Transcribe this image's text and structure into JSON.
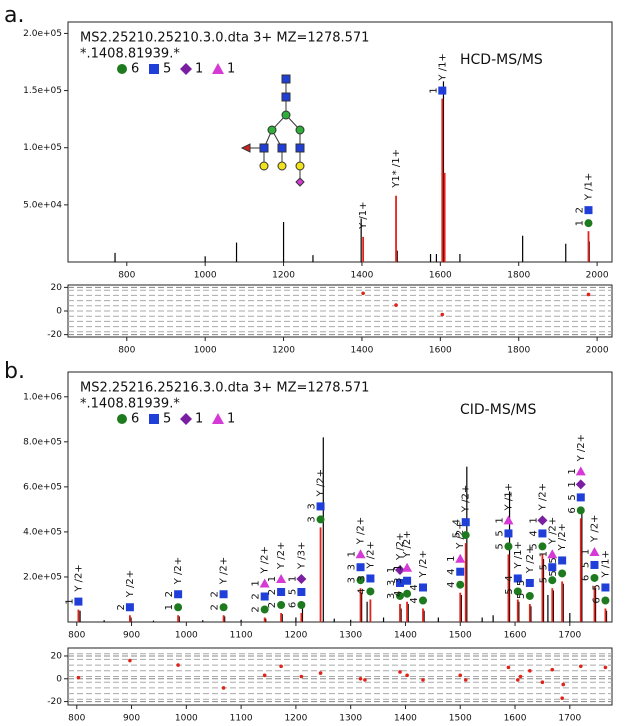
{
  "panel_labels": [
    "a.",
    "b."
  ],
  "chart_data": [
    {
      "type": "bar",
      "title": "MS2.25210.25210.3.0.dta  3+  MZ=1278.571",
      "subtitle": "*.1408.81939.*",
      "method": "HCD-MS/MS",
      "legend": [
        {
          "name": 6,
          "shape": "circle",
          "color": "#1e7a1e"
        },
        {
          "name": 5,
          "shape": "square",
          "color": "#1f3fd8"
        },
        {
          "name": 1,
          "shape": "diamond",
          "color": "#7b1fa2"
        },
        {
          "name": 1,
          "shape": "triangle",
          "color": "#d63ad6"
        }
      ],
      "xlim": [
        650,
        2038
      ],
      "xticks": [
        800,
        1000,
        1200,
        1400,
        1600,
        1800,
        2000
      ],
      "ylim": [
        0,
        210000
      ],
      "yticks": [
        {
          "value": 50000,
          "label": "5.0e+04"
        },
        {
          "value": 100000,
          "label": "1.0e+05"
        },
        {
          "value": 150000,
          "label": "1.5e+05"
        },
        {
          "value": 200000,
          "label": "2.0e+05"
        }
      ],
      "peaks": {
        "color": "#000000",
        "x": [
          770,
          1000,
          1080,
          1200,
          1275,
          1398,
          1490,
          1575,
          1590,
          1608,
          1650,
          1810,
          1920,
          1980
        ],
        "values": [
          8000,
          5000,
          17000,
          35000,
          6000,
          38000,
          10000,
          7000,
          7000,
          158000,
          7000,
          23000,
          16000,
          18000
        ]
      },
      "annotations": {
        "color": "#e0241b",
        "items": [
          {
            "x": 1403,
            "value": 22000,
            "label": "Y /1+",
            "glyphs": []
          },
          {
            "x": 1487,
            "value": 58000,
            "label": "Y1* /1+",
            "glyphs": []
          },
          {
            "x": 1605,
            "value": 143000,
            "label": "Y /1+",
            "glyphs": [
              {
                "shape": "square",
                "count": 1
              }
            ]
          },
          {
            "x": 1611,
            "value": 78000,
            "glyphs": []
          },
          {
            "x": 1978,
            "value": 27000,
            "label": "Y /1+",
            "glyphs": [
              {
                "shape": "circle",
                "count": 1
              },
              {
                "shape": "square",
                "count": 2
              }
            ]
          }
        ]
      }
    },
    {
      "type": "scatter",
      "color": "#e0241b",
      "grid": true,
      "xlim": [
        650,
        2038
      ],
      "xticks": [
        800,
        1000,
        1200,
        1400,
        1600,
        1800,
        2000
      ],
      "ylim": [
        -22,
        22
      ],
      "yticks": [
        -20,
        0,
        20
      ],
      "x": [
        1403,
        1487,
        1605,
        1978
      ],
      "values": [
        15,
        5,
        -3,
        14
      ]
    },
    {
      "type": "bar",
      "title": "MS2.25216.25216.3.0.dta  3+  MZ=1278.571",
      "subtitle": "*.1408.81939.*",
      "method": "CID-MS/MS",
      "legend": [
        {
          "name": 6,
          "shape": "circle",
          "color": "#1e7a1e"
        },
        {
          "name": 5,
          "shape": "square",
          "color": "#1f3fd8"
        },
        {
          "name": 1,
          "shape": "diamond",
          "color": "#7b1fa2"
        },
        {
          "name": 1,
          "shape": "triangle",
          "color": "#d63ad6"
        }
      ],
      "xlim": [
        784,
        1777
      ],
      "xticks": [
        800,
        900,
        1000,
        1100,
        1200,
        1300,
        1400,
        1500,
        1600,
        1700
      ],
      "ylim": [
        0,
        1110000
      ],
      "yticks": [
        {
          "value": 200000,
          "label": "2.0e+05"
        },
        {
          "value": 400000,
          "label": "4.0e+05"
        },
        {
          "value": 600000,
          "label": "6.0e+05"
        },
        {
          "value": 800000,
          "label": "8.0e+05"
        },
        {
          "value": 1000000,
          "label": "1.0e+06"
        }
      ],
      "peaks": {
        "color": "#000000",
        "x": [
          806,
          850,
          899,
          940,
          987,
          1030,
          1070,
          1100,
          1145,
          1175,
          1200,
          1212,
          1250,
          1270,
          1300,
          1320,
          1330,
          1360,
          1392,
          1405,
          1434,
          1460,
          1502,
          1512,
          1540,
          1560,
          1590,
          1607,
          1629,
          1652,
          1660,
          1670,
          1688,
          1700,
          1722,
          1747,
          1767
        ],
        "values": [
          50000,
          8000,
          20000,
          6000,
          25000,
          8000,
          25000,
          10000,
          15000,
          35000,
          20000,
          60000,
          820000,
          15000,
          10000,
          130000,
          90000,
          20000,
          60000,
          80000,
          50000,
          20000,
          120000,
          690000,
          20000,
          30000,
          580000,
          90000,
          70000,
          280000,
          120000,
          140000,
          170000,
          40000,
          510000,
          150000,
          50000
        ]
      },
      "annotations": {
        "color": "#e0241b",
        "items": [
          {
            "x": 803,
            "value": 55000,
            "label": "Y /2+",
            "glyphs": [
              {
                "shape": "square",
                "count": 1
              }
            ]
          },
          {
            "x": 897,
            "value": 30000,
            "label": "Y /2+",
            "glyphs": [
              {
                "shape": "square",
                "count": 2
              }
            ]
          },
          {
            "x": 985,
            "value": 30000,
            "label": "Y /2+",
            "glyphs": [
              {
                "shape": "circle",
                "count": 1
              },
              {
                "shape": "square",
                "count": 2
              }
            ]
          },
          {
            "x": 1068,
            "value": 30000,
            "label": "Y /2+",
            "glyphs": [
              {
                "shape": "circle",
                "count": 2
              },
              {
                "shape": "square",
                "count": 2
              }
            ]
          },
          {
            "x": 1143,
            "value": 20000,
            "label": "Y /2+",
            "glyphs": [
              {
                "shape": "circle",
                "count": 2
              },
              {
                "shape": "square",
                "count": 2
              },
              {
                "shape": "triangle",
                "count": 1
              }
            ]
          },
          {
            "x": 1173,
            "value": 40000,
            "label": "Y /2+",
            "glyphs": [
              {
                "shape": "circle",
                "count": 2
              },
              {
                "shape": "square",
                "count": 2
              },
              {
                "shape": "triangle",
                "count": 1
              }
            ]
          },
          {
            "x": 1210,
            "value": 40000,
            "label": "Y /3+",
            "glyphs": [
              {
                "shape": "circle",
                "count": 6
              },
              {
                "shape": "square",
                "count": 5
              },
              {
                "shape": "diamond",
                "count": 1
              }
            ]
          },
          {
            "x": 1245,
            "value": 420000,
            "label": "Y /2+",
            "glyphs": [
              {
                "shape": "circle",
                "count": 3
              },
              {
                "shape": "square",
                "count": 3
              }
            ]
          },
          {
            "x": 1318,
            "value": 150000,
            "label": "Y /2+",
            "glyphs": [
              {
                "shape": "circle",
                "count": 3
              },
              {
                "shape": "square",
                "count": 3
              },
              {
                "shape": "triangle",
                "count": 1
              }
            ]
          },
          {
            "x": 1336,
            "value": 100000,
            "label": "Y /2+",
            "glyphs": [
              {
                "shape": "circle",
                "count": 4
              },
              {
                "shape": "square",
                "count": 3
              }
            ]
          },
          {
            "x": 1390,
            "value": 80000,
            "label": "Y /2+",
            "glyphs": [
              {
                "shape": "circle",
                "count": 3
              },
              {
                "shape": "square",
                "count": 3
              },
              {
                "shape": "diamond",
                "count": 1
              }
            ]
          },
          {
            "x": 1403,
            "value": 90000,
            "label": "Y /2+",
            "glyphs": [
              {
                "shape": "circle",
                "count": 4
              },
              {
                "shape": "square",
                "count": 3
              },
              {
                "shape": "triangle",
                "count": 1
              }
            ]
          },
          {
            "x": 1432,
            "value": 60000,
            "label": "Y /2+",
            "glyphs": [
              {
                "shape": "circle",
                "count": 4
              },
              {
                "shape": "square",
                "count": 4
              }
            ]
          },
          {
            "x": 1500,
            "value": 130000,
            "label": "Y /2+",
            "glyphs": [
              {
                "shape": "circle",
                "count": 4
              },
              {
                "shape": "square",
                "count": 4
              },
              {
                "shape": "triangle",
                "count": 1
              }
            ]
          },
          {
            "x": 1510,
            "value": 350000,
            "label": "Y /2+",
            "glyphs": [
              {
                "shape": "circle",
                "count": 5
              },
              {
                "shape": "square",
                "count": 4
              }
            ]
          },
          {
            "x": 1588,
            "value": 300000,
            "label": "Y /1+",
            "glyphs": [
              {
                "shape": "circle",
                "count": 5
              },
              {
                "shape": "square",
                "count": 5
              },
              {
                "shape": "triangle",
                "count": 1
              }
            ]
          },
          {
            "x": 1605,
            "value": 100000,
            "label": "Y /1+",
            "glyphs": [
              {
                "shape": "circle",
                "count": 5
              },
              {
                "shape": "square",
                "count": 4
              }
            ]
          },
          {
            "x": 1627,
            "value": 80000,
            "label": "Y /2+",
            "glyphs": [
              {
                "shape": "circle",
                "count": 5
              },
              {
                "shape": "square",
                "count": 5
              }
            ]
          },
          {
            "x": 1650,
            "value": 300000,
            "label": "Y /2+",
            "glyphs": [
              {
                "shape": "circle",
                "count": 5
              },
              {
                "shape": "square",
                "count": 4
              },
              {
                "shape": "diamond",
                "count": 1
              }
            ]
          },
          {
            "x": 1668,
            "value": 150000,
            "label": "Y /2+",
            "glyphs": [
              {
                "shape": "circle",
                "count": 5
              },
              {
                "shape": "square",
                "count": 5
              },
              {
                "shape": "triangle",
                "count": 1
              }
            ]
          },
          {
            "x": 1686,
            "value": 180000,
            "label": "Y /2+",
            "glyphs": [
              {
                "shape": "circle",
                "count": 5
              },
              {
                "shape": "square",
                "count": 5
              }
            ]
          },
          {
            "x": 1720,
            "value": 460000,
            "label": "Y /2+",
            "glyphs": [
              {
                "shape": "circle",
                "count": 6
              },
              {
                "shape": "square",
                "count": 5
              },
              {
                "shape": "diamond",
                "count": 1
              },
              {
                "shape": "triangle",
                "count": 1
              }
            ]
          },
          {
            "x": 1745,
            "value": 160000,
            "label": "Y /2+",
            "glyphs": [
              {
                "shape": "circle",
                "count": 6
              },
              {
                "shape": "square",
                "count": 5
              },
              {
                "shape": "triangle",
                "count": 1
              }
            ]
          },
          {
            "x": 1765,
            "value": 60000,
            "label": "Y /1+",
            "glyphs": [
              {
                "shape": "circle",
                "count": 6
              },
              {
                "shape": "square",
                "count": 5
              }
            ]
          }
        ]
      }
    },
    {
      "type": "scatter",
      "color": "#e0241b",
      "grid": true,
      "xlim": [
        784,
        1777
      ],
      "xticks": [
        800,
        900,
        1000,
        1100,
        1200,
        1300,
        1400,
        1500,
        1600,
        1700
      ],
      "ylim": [
        -23,
        27
      ],
      "yticks": [
        -20,
        0,
        20
      ],
      "x": [
        803,
        897,
        985,
        1068,
        1143,
        1173,
        1210,
        1245,
        1318,
        1326,
        1390,
        1403,
        1432,
        1500,
        1510,
        1588,
        1605,
        1610,
        1627,
        1650,
        1668,
        1686,
        1688,
        1720,
        1765
      ],
      "values": [
        1,
        16,
        12,
        -8,
        3,
        11,
        2,
        5,
        0,
        -1,
        6,
        3,
        -1,
        3,
        -1,
        10,
        -1,
        2,
        7,
        -3,
        8,
        -17,
        -5,
        11,
        10
      ]
    }
  ]
}
